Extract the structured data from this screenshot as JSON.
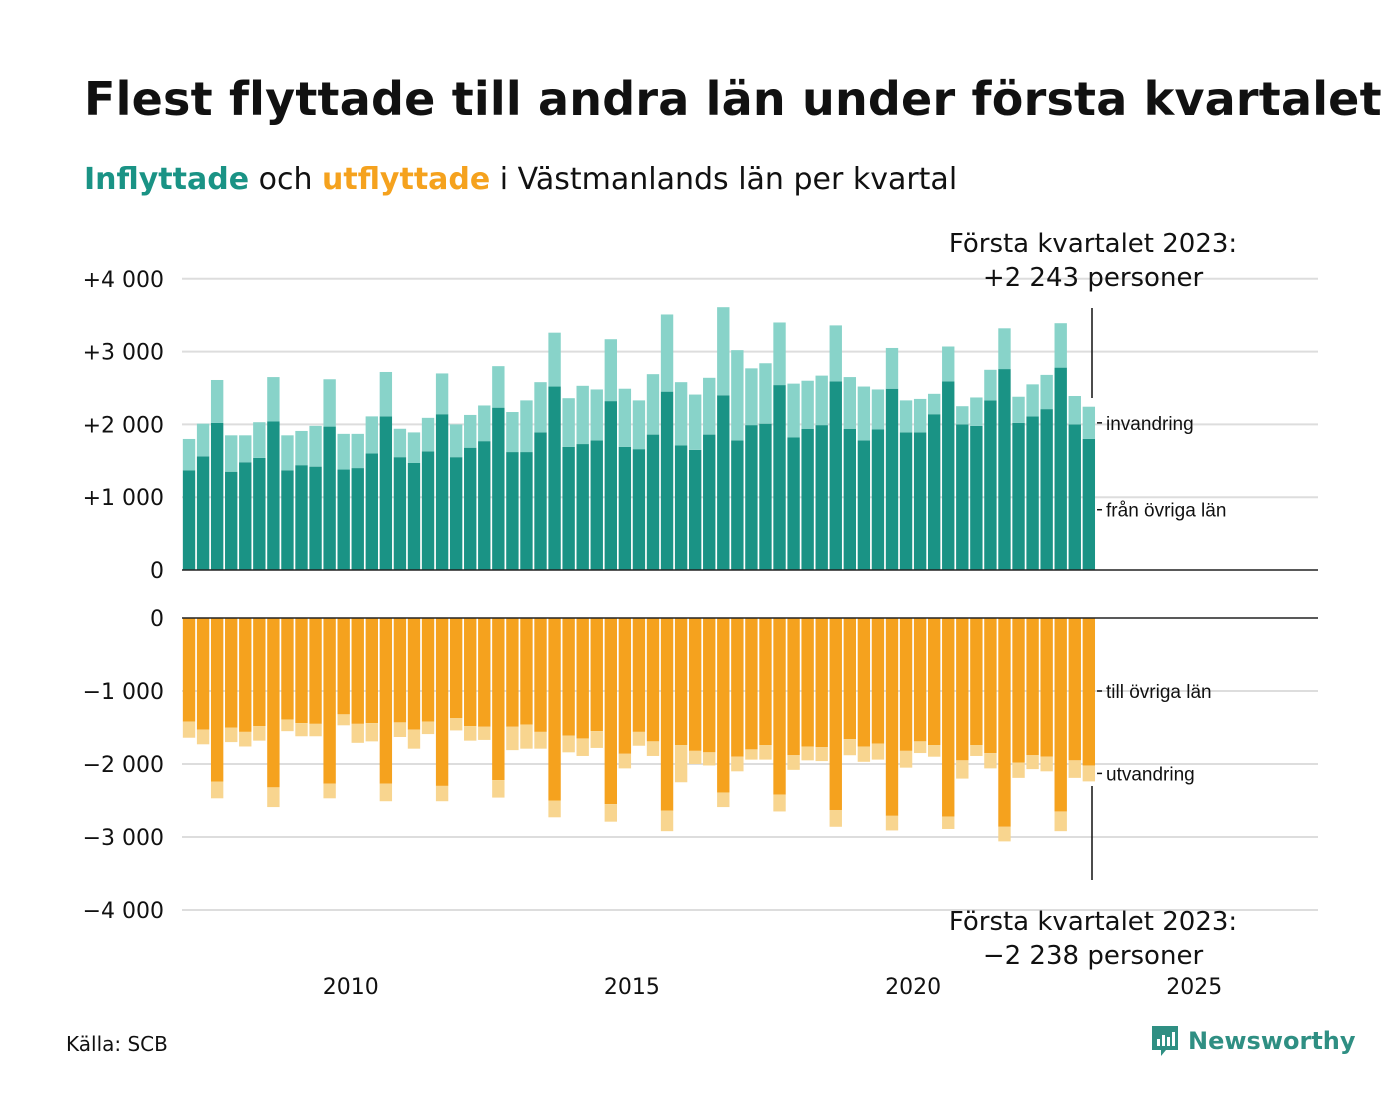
{
  "title": "Flest flyttade till andra län under första kvartalet",
  "subtitle": {
    "part1": "Inflyttade",
    "part2": " och ",
    "part3": "utflyttade",
    "part4": " i Västmanlands län per kvartal"
  },
  "source": "Källa: SCB",
  "logo_text": "Newsworthy",
  "logo_icon": "newsworthy-logo-icon",
  "colors": {
    "inflow_main": "#1a9385",
    "inflow_light": "#88d3c9",
    "outflow_main": "#f5a21e",
    "outflow_light": "#f8d58f",
    "grid": "#dddddd",
    "axis": "#222222"
  },
  "chart_data": {
    "type": "bar",
    "stacked": true,
    "x_tick_labels": [
      "2010",
      "2015",
      "2020",
      "2025"
    ],
    "xlim": [
      2007.0,
      2027.2
    ],
    "top_panel": {
      "ylim": [
        0,
        4000
      ],
      "y_tick_labels": [
        "0",
        "+1 000",
        "+2 000",
        "+3 000",
        "+4 000"
      ],
      "series": [
        {
          "name": "från övriga län",
          "values": [
            1370,
            1560,
            2020,
            1350,
            1480,
            1540,
            2040,
            1370,
            1440,
            1420,
            1970,
            1380,
            1400,
            1600,
            2110,
            1550,
            1470,
            1630,
            2140,
            1550,
            1680,
            1770,
            2230,
            1620,
            1620,
            1890,
            2520,
            1690,
            1730,
            1780,
            2320,
            1690,
            1660,
            1860,
            2450,
            1710,
            1650,
            1860,
            2400,
            1780,
            1990,
            2010,
            2540,
            1820,
            1940,
            1990,
            2590,
            1940,
            1780,
            1930,
            2490,
            1890,
            1890,
            2140,
            2590,
            2000,
            1980,
            2330,
            2760,
            2020,
            2110,
            2210,
            2780,
            2000,
            1800
          ]
        },
        {
          "name": "invandring",
          "values": [
            430,
            450,
            590,
            500,
            370,
            490,
            610,
            480,
            470,
            560,
            650,
            490,
            470,
            510,
            610,
            390,
            420,
            460,
            560,
            450,
            450,
            490,
            570,
            550,
            710,
            690,
            740,
            670,
            800,
            700,
            850,
            800,
            670,
            830,
            1060,
            870,
            760,
            780,
            1210,
            1240,
            780,
            830,
            860,
            740,
            660,
            680,
            770,
            710,
            740,
            550,
            560,
            440,
            460,
            280,
            480,
            250,
            390,
            420,
            560,
            360,
            440,
            470,
            610,
            390,
            443
          ]
        }
      ]
    },
    "bottom_panel": {
      "ylim": [
        -4000,
        0
      ],
      "y_tick_labels": [
        "0",
        "−1 000",
        "−2 000",
        "−3 000",
        "−4 000"
      ],
      "series": [
        {
          "name": "till övriga län",
          "values": [
            -1420,
            -1530,
            -2240,
            -1500,
            -1560,
            -1480,
            -2320,
            -1390,
            -1440,
            -1450,
            -2270,
            -1320,
            -1450,
            -1440,
            -2270,
            -1430,
            -1530,
            -1420,
            -2300,
            -1370,
            -1480,
            -1490,
            -2220,
            -1490,
            -1460,
            -1560,
            -2500,
            -1610,
            -1650,
            -1550,
            -2550,
            -1860,
            -1560,
            -1690,
            -2640,
            -1740,
            -1820,
            -1840,
            -2390,
            -1900,
            -1800,
            -1740,
            -2420,
            -1880,
            -1760,
            -1770,
            -2630,
            -1660,
            -1760,
            -1720,
            -2710,
            -1820,
            -1690,
            -1740,
            -2720,
            -1950,
            -1740,
            -1850,
            -2860,
            -1980,
            -1880,
            -1900,
            -2650,
            -1950,
            -2020
          ]
        },
        {
          "name": "utvandring",
          "values": [
            -220,
            -200,
            -230,
            -200,
            -200,
            -200,
            -270,
            -160,
            -180,
            -170,
            -200,
            -150,
            -260,
            -250,
            -240,
            -200,
            -260,
            -170,
            -210,
            -170,
            -200,
            -180,
            -240,
            -320,
            -330,
            -230,
            -230,
            -230,
            -240,
            -230,
            -240,
            -200,
            -190,
            -200,
            -280,
            -510,
            -180,
            -180,
            -200,
            -200,
            -140,
            -200,
            -230,
            -200,
            -190,
            -190,
            -230,
            -220,
            -210,
            -220,
            -200,
            -230,
            -160,
            -160,
            -170,
            -250,
            -150,
            -210,
            -200,
            -210,
            -190,
            -200,
            -270,
            -240,
            -218
          ]
        }
      ]
    },
    "annotations": {
      "top": "Första kvartalet 2023:\n+2 243 personer",
      "bottom": "Första kvartalet 2023:\n−2 238 personer"
    }
  }
}
